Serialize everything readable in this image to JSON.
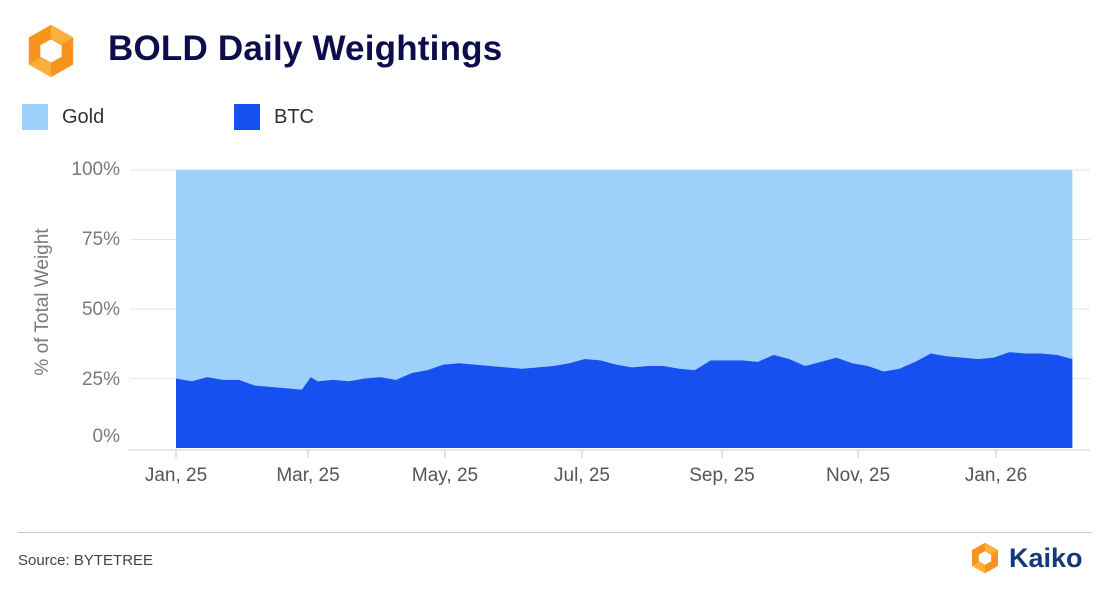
{
  "header": {
    "title": "BOLD Daily Weightings",
    "logo_icon": "kaiko-hexagon-logo-icon"
  },
  "colors": {
    "gold": "#9dd1fb",
    "btc": "#1650f0",
    "title": "#0d0d4d",
    "brand_orange": "#f7941d",
    "brand_yellow": "#fbb03b",
    "brand_text": "#123a78"
  },
  "footer": {
    "source": "Source: BYTETREE",
    "brand_name": "Kaiko",
    "brand_icon": "kaiko-hexagon-logo-icon"
  },
  "chart_data": {
    "type": "area",
    "stacked": true,
    "grid": true,
    "legend_position": "top-left",
    "title": "BOLD Daily Weightings",
    "xlabel": "",
    "ylabel": "% of Total Weight",
    "ylim": [
      0,
      100
    ],
    "yticks": [
      "0%",
      "25%",
      "50%",
      "75%",
      "100%"
    ],
    "xticks": [
      "Jan, 25",
      "Mar, 25",
      "May, 25",
      "Jul, 25",
      "Sep, 25",
      "Nov, 25",
      "Jan, 26"
    ],
    "x": [
      "2025-01-01",
      "2025-01-08",
      "2025-01-15",
      "2025-01-22",
      "2025-01-29",
      "2025-02-05",
      "2025-02-12",
      "2025-02-19",
      "2025-02-26",
      "2025-03-02",
      "2025-03-05",
      "2025-03-12",
      "2025-03-19",
      "2025-03-26",
      "2025-04-02",
      "2025-04-09",
      "2025-04-16",
      "2025-04-23",
      "2025-04-30",
      "2025-05-07",
      "2025-05-14",
      "2025-05-21",
      "2025-05-28",
      "2025-06-04",
      "2025-06-11",
      "2025-06-18",
      "2025-06-25",
      "2025-07-02",
      "2025-07-09",
      "2025-07-16",
      "2025-07-23",
      "2025-07-30",
      "2025-08-06",
      "2025-08-13",
      "2025-08-20",
      "2025-08-27",
      "2025-09-03",
      "2025-09-10",
      "2025-09-17",
      "2025-09-24",
      "2025-10-01",
      "2025-10-08",
      "2025-10-15",
      "2025-10-22",
      "2025-10-29",
      "2025-11-05",
      "2025-11-12",
      "2025-11-19",
      "2025-11-26",
      "2025-12-03",
      "2025-12-10",
      "2025-12-17",
      "2025-12-24",
      "2025-12-31",
      "2026-01-07",
      "2026-01-14",
      "2026-01-21",
      "2026-01-28",
      "2026-02-04"
    ],
    "series": [
      {
        "name": "BTC",
        "values": [
          25,
          24,
          25.5,
          24.5,
          24.5,
          22.5,
          22,
          21.5,
          21,
          25.5,
          24,
          24.5,
          24,
          25,
          25.5,
          24.5,
          27,
          28,
          30,
          30.5,
          30,
          29.5,
          29,
          28.5,
          29,
          29.5,
          30.5,
          32,
          31.5,
          30,
          29,
          29.5,
          29.5,
          28.5,
          28,
          31.5,
          31.5,
          31.5,
          31,
          33.5,
          32,
          29.5,
          31,
          32.5,
          30.5,
          29.5,
          27.5,
          28.5,
          31,
          34,
          33,
          32.5,
          32,
          32.5,
          34.5,
          34,
          34,
          33.5,
          32
        ]
      },
      {
        "name": "Gold",
        "values": [
          75,
          76,
          74.5,
          75.5,
          75.5,
          77.5,
          78,
          78.5,
          79,
          74.5,
          76,
          75.5,
          76,
          75,
          74.5,
          75.5,
          73,
          72,
          70,
          69.5,
          70,
          70.5,
          71,
          71.5,
          71,
          70.5,
          69.5,
          68,
          68.5,
          70,
          71,
          70.5,
          70.5,
          71.5,
          72,
          68.5,
          68.5,
          68.5,
          69,
          66.5,
          68,
          70.5,
          69,
          67.5,
          69.5,
          70.5,
          72.5,
          71.5,
          69,
          66,
          67,
          67.5,
          68,
          67.5,
          65.5,
          66,
          66,
          66.5,
          68
        ]
      }
    ]
  }
}
